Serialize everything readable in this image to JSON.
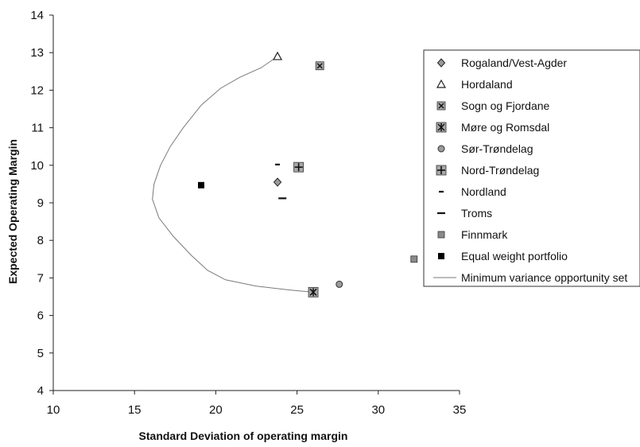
{
  "chart_data": {
    "type": "scatter",
    "xlabel": "Standard Deviation of operating margin",
    "ylabel": "Expected Operating Margin",
    "xlim": [
      10,
      35
    ],
    "ylim": [
      4,
      14
    ],
    "xticks": [
      "10",
      "15",
      "20",
      "25",
      "30",
      "35"
    ],
    "yticks": [
      "4",
      "5",
      "6",
      "7",
      "8",
      "9",
      "10",
      "11",
      "12",
      "13",
      "14"
    ],
    "grid": false,
    "legend_position": "right",
    "series": [
      {
        "name": "Rogaland/Vest-Agder",
        "marker": "diamond",
        "x": 23.8,
        "y": 9.55
      },
      {
        "name": "Hordaland",
        "marker": "triangle",
        "x": 23.8,
        "y": 12.9
      },
      {
        "name": "Sogn og Fjordane",
        "marker": "x-square",
        "x": 26.4,
        "y": 12.65
      },
      {
        "name": "Møre og Romsdal",
        "marker": "star-square",
        "x": 26.0,
        "y": 6.62
      },
      {
        "name": "Sør-Trøndelag",
        "marker": "circle",
        "x": 27.6,
        "y": 6.83
      },
      {
        "name": "Nord-Trøndelag",
        "marker": "plus-square",
        "x": 25.1,
        "y": 9.95
      },
      {
        "name": "Nordland",
        "marker": "short-dash",
        "x": 23.8,
        "y": 10.02
      },
      {
        "name": "Troms",
        "marker": "dash",
        "x": 24.1,
        "y": 9.12
      },
      {
        "name": "Finnmark",
        "marker": "square",
        "x": 32.2,
        "y": 7.5
      },
      {
        "name": "Equal weight portfolio",
        "marker": "black-square",
        "x": 19.1,
        "y": 9.47
      }
    ],
    "curve": {
      "name": "Minimum variance opportunity set",
      "points": [
        [
          23.8,
          12.9
        ],
        [
          22.8,
          12.6
        ],
        [
          21.5,
          12.35
        ],
        [
          20.3,
          12.05
        ],
        [
          19.1,
          11.6
        ],
        [
          18.0,
          11.0
        ],
        [
          17.2,
          10.5
        ],
        [
          16.6,
          10.0
        ],
        [
          16.2,
          9.5
        ],
        [
          16.1,
          9.1
        ],
        [
          16.5,
          8.6
        ],
        [
          17.4,
          8.1
        ],
        [
          18.5,
          7.6
        ],
        [
          19.5,
          7.2
        ],
        [
          20.6,
          6.95
        ],
        [
          22.5,
          6.78
        ],
        [
          24.5,
          6.68
        ],
        [
          26.0,
          6.62
        ]
      ]
    }
  }
}
